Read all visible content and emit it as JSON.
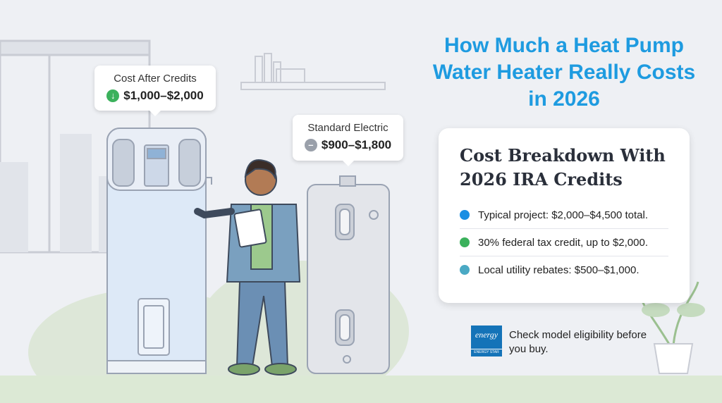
{
  "title": "How Much a Heat Pump Water Heater Really Costs in 2026",
  "callouts": [
    {
      "label": "Cost After Credits",
      "value": "$1,000–$2,000"
    },
    {
      "label": "Standard Electric",
      "value": "$900–$1,800"
    }
  ],
  "breakdown": {
    "heading": "Cost Breakdown With 2026 IRA Credits",
    "items": [
      {
        "text": "Typical project: $2,000–$4,500 total.",
        "color": "#1a8fe3"
      },
      {
        "text": "30% federal tax credit, up to $2,000.",
        "color": "#3bb15c"
      },
      {
        "text": "Local utility rebates: $500–$1,000.",
        "color": "#4aa9c4"
      }
    ]
  },
  "badge": {
    "script": "energy",
    "label": "ENERGY STAR"
  },
  "note": "Check model eligibility before you buy."
}
